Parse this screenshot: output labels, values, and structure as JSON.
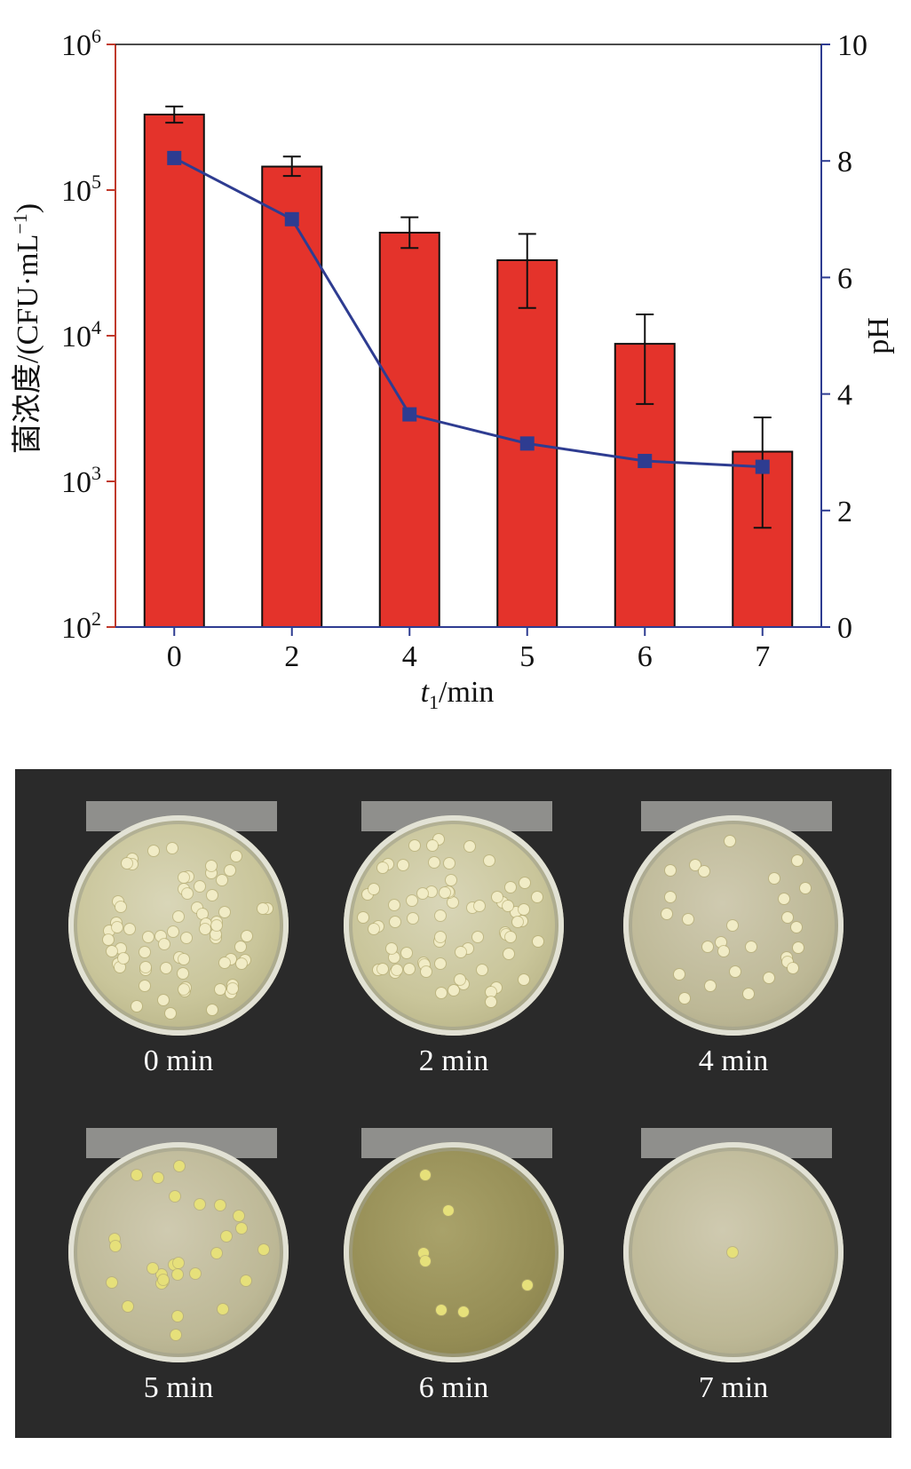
{
  "chart_data": {
    "type": "bar+line",
    "categories": [
      "0",
      "2",
      "4",
      "5",
      "6",
      "7"
    ],
    "bar_series": {
      "values": [
        330000,
        145000,
        51000,
        33000,
        8800,
        1600
      ],
      "err_low": [
        290000,
        125000,
        40000,
        15500,
        3400,
        480
      ],
      "err_high": [
        375000,
        170000,
        65000,
        50000,
        14000,
        2750
      ],
      "color": "#e4332b",
      "y_scale": "log",
      "ylim": [
        100,
        1000000
      ],
      "ytick_labels": [
        {
          "value": 100,
          "base": "10",
          "exp": "2"
        },
        {
          "value": 1000,
          "base": "10",
          "exp": "3"
        },
        {
          "value": 10000,
          "base": "10",
          "exp": "4"
        },
        {
          "value": 100000,
          "base": "10",
          "exp": "5"
        },
        {
          "value": 1000000,
          "base": "10",
          "exp": "6"
        }
      ],
      "ylabel": "菌浓度/(CFU·mL",
      "ylabel_sup": "−1",
      "ylabel_close": ")"
    },
    "line_series": {
      "values": [
        8.05,
        7.0,
        3.65,
        3.15,
        2.85,
        2.75
      ],
      "color": "#2e3c91",
      "ylim": [
        0,
        10
      ],
      "yticks": [
        "0",
        "2",
        "4",
        "6",
        "8",
        "10"
      ],
      "ylabel": "pH"
    },
    "xlabel": "t",
    "xlabel_sub": "1",
    "xlabel_unit": "/min",
    "axis_colors": {
      "left": "#c0392b",
      "right": "#2e3c91",
      "bottom": "#2e3c91"
    }
  },
  "plates": [
    {
      "label": "0 min",
      "colonies": "many"
    },
    {
      "label": "2 min",
      "colonies": "many"
    },
    {
      "label": "4 min",
      "colonies": "some"
    },
    {
      "label": "5 min",
      "colonies": "some"
    },
    {
      "label": "6 min",
      "colonies": "few"
    },
    {
      "label": "7 min",
      "colonies": "one"
    }
  ]
}
